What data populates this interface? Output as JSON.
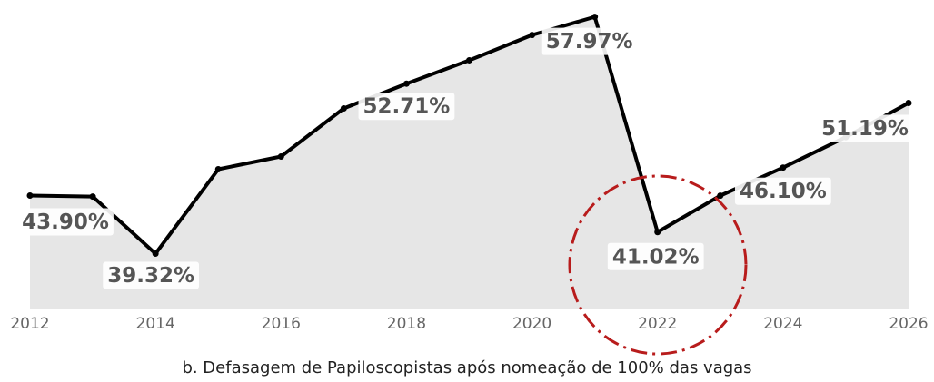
{
  "chart_data": {
    "type": "line",
    "x": [
      2012,
      2013,
      2014,
      2015,
      2016,
      2017,
      2018,
      2019,
      2020,
      2021,
      2022,
      2023,
      2024,
      2025,
      2026
    ],
    "values": [
      43.9,
      43.82,
      39.32,
      45.97,
      46.97,
      50.76,
      52.71,
      54.55,
      56.54,
      57.97,
      41.02,
      43.89,
      46.1,
      48.5,
      51.19
    ],
    "value_labels": [
      "43.90%",
      null,
      "39.32%",
      null,
      null,
      null,
      "52.71%",
      null,
      null,
      "57.97%",
      "41.02%",
      null,
      "46.10%",
      null,
      "51.19%"
    ],
    "color": "#000000",
    "area_color": "#e6e6e6",
    "xlim": [
      2012,
      2026
    ],
    "xticks": [
      2012,
      2014,
      2016,
      2018,
      2020,
      2022,
      2024,
      2026
    ],
    "ylim": [
      35,
      59.3
    ],
    "caption": "b. Defasagem de Papiloscopistas após nomeação de 100% das vagas"
  }
}
